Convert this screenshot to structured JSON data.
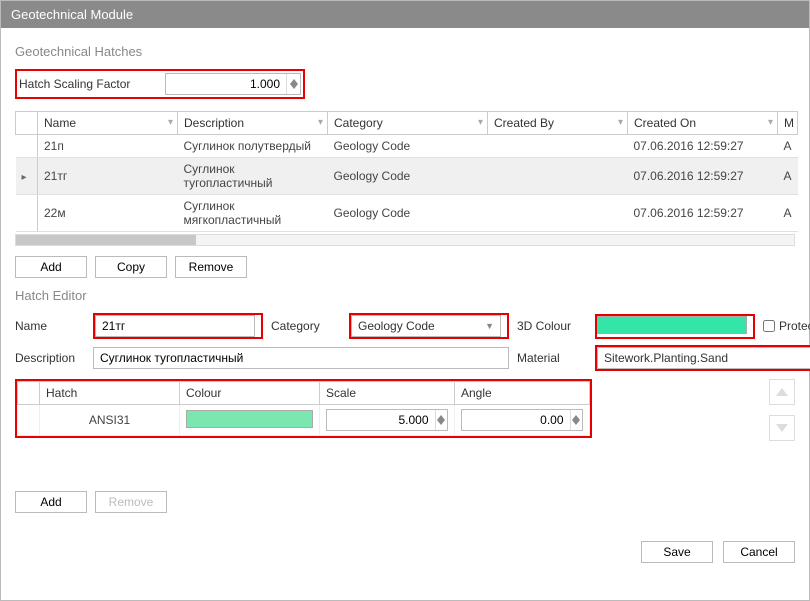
{
  "window": {
    "title": "Geotechnical Module"
  },
  "sections": {
    "hatches_title": "Geotechnical Hatches",
    "editor_title": "Hatch Editor"
  },
  "scaling": {
    "label": "Hatch Scaling Factor",
    "value": "1.000"
  },
  "hatches_table": {
    "columns": [
      "Name",
      "Description",
      "Category",
      "Created By",
      "Created On",
      "M"
    ],
    "rows": [
      {
        "name": "21п",
        "desc": "Суглинок полутвердый",
        "cat": "Geology Code",
        "by": "",
        "on": "07.06.2016 12:59:27",
        "m": "A",
        "selected": false
      },
      {
        "name": "21тг",
        "desc": "Суглинок тугопластичный",
        "cat": "Geology Code",
        "by": "",
        "on": "07.06.2016 12:59:27",
        "m": "A",
        "selected": true
      },
      {
        "name": "22м",
        "desc": "Суглинок мягкопластичный",
        "cat": "Geology Code",
        "by": "",
        "on": "07.06.2016 12:59:27",
        "m": "A",
        "selected": false
      }
    ]
  },
  "hatch_buttons": {
    "add": "Add",
    "copy": "Copy",
    "remove": "Remove"
  },
  "editor": {
    "name_label": "Name",
    "name_value": "21тг",
    "category_label": "Category",
    "category_value": "Geology Code",
    "color3d_label": "3D Colour",
    "color3d_value": "#33e6a8",
    "protected_label": "Protected",
    "protected_checked": false,
    "description_label": "Description",
    "description_value": "Суглинок тугопластичный",
    "material_label": "Material",
    "material_value": "Sitework.Planting.Sand"
  },
  "layers_table": {
    "columns": [
      "Hatch",
      "Colour",
      "Scale",
      "Angle"
    ],
    "rows": [
      {
        "hatch": "ANSI31",
        "colour": "#7ae6b0",
        "scale": "5.000",
        "angle": "0.00"
      }
    ]
  },
  "layer_buttons": {
    "add": "Add",
    "remove": "Remove"
  },
  "footer": {
    "save": "Save",
    "cancel": "Cancel"
  },
  "highlight_color": "#e60000"
}
